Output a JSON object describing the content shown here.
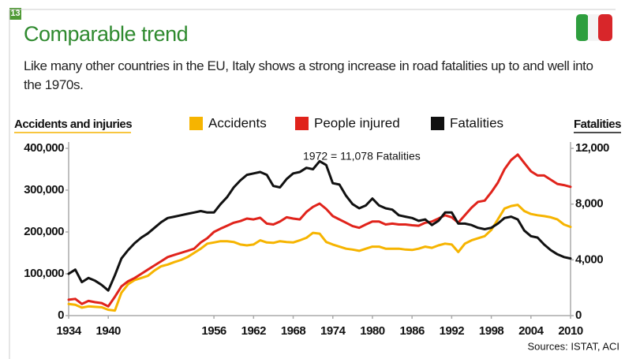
{
  "chart_data": {
    "type": "line",
    "badge": "13",
    "title": "Comparable trend",
    "subtitle": "Like many other countries in the EU, Italy shows a strong increase in road fatalities up to and well into the 1970s.",
    "y_label": "Accidents and injuries",
    "y2_label": "Fatalities",
    "annotation": "1972 = 11,078 Fatalities",
    "source": "Sources: ISTAT, ACI",
    "x": [
      1934,
      1935,
      1936,
      1937,
      1938,
      1939,
      1940,
      1941,
      1942,
      1943,
      1944,
      1945,
      1946,
      1947,
      1948,
      1949,
      1950,
      1951,
      1952,
      1953,
      1954,
      1955,
      1956,
      1957,
      1958,
      1959,
      1960,
      1961,
      1962,
      1963,
      1964,
      1965,
      1966,
      1967,
      1968,
      1969,
      1970,
      1971,
      1972,
      1973,
      1974,
      1975,
      1976,
      1977,
      1978,
      1979,
      1980,
      1981,
      1982,
      1983,
      1984,
      1985,
      1986,
      1987,
      1988,
      1989,
      1990,
      1991,
      1992,
      1993,
      1994,
      1995,
      1996,
      1997,
      1998,
      1999,
      2000,
      2001,
      2002,
      2003,
      2004,
      2005,
      2006,
      2007,
      2008,
      2009,
      2010
    ],
    "xlim": [
      1934,
      2010
    ],
    "xticks": [
      1934,
      1940,
      1956,
      1962,
      1968,
      1974,
      1980,
      1986,
      1992,
      1998,
      2004,
      2010
    ],
    "ylim": [
      0,
      400000
    ],
    "yticks": [
      0,
      {
        "value": 100000,
        "label": "100,000"
      },
      {
        "value": 200000,
        "label": "200,000"
      },
      {
        "value": 300000,
        "label": "300,000"
      },
      {
        "value": 400000,
        "label": "400,000"
      }
    ],
    "y2lim": [
      0,
      12000
    ],
    "y2ticks": [
      0,
      {
        "value": 4000,
        "label": "4,000"
      },
      {
        "value": 8000,
        "label": "8,000"
      },
      {
        "value": 12000,
        "label": "12,000"
      }
    ],
    "grid": false,
    "series": [
      {
        "name": "Accidents",
        "color": "#f6b400",
        "values": [
          28000,
          26000,
          19000,
          22000,
          21000,
          20000,
          14000,
          12000,
          55000,
          75000,
          85000,
          90000,
          95000,
          108000,
          118000,
          122000,
          128000,
          133000,
          140000,
          150000,
          160000,
          172000,
          175000,
          178000,
          178000,
          176000,
          170000,
          168000,
          170000,
          180000,
          175000,
          174000,
          178000,
          176000,
          175000,
          180000,
          186000,
          198000,
          196000,
          176000,
          170000,
          165000,
          160000,
          158000,
          155000,
          160000,
          165000,
          165000,
          160000,
          160000,
          160000,
          158000,
          157000,
          160000,
          165000,
          162000,
          168000,
          172000,
          170000,
          152000,
          172000,
          180000,
          185000,
          190000,
          205000,
          230000,
          256000,
          262000,
          265000,
          250000,
          243000,
          240000,
          238000,
          235000,
          230000,
          218000,
          212000
        ]
      },
      {
        "name": "People injured",
        "color": "#e0231b",
        "values": [
          38000,
          40000,
          28000,
          35000,
          32000,
          30000,
          22000,
          45000,
          70000,
          82000,
          90000,
          100000,
          110000,
          120000,
          130000,
          140000,
          145000,
          150000,
          155000,
          160000,
          175000,
          185000,
          200000,
          208000,
          215000,
          222000,
          226000,
          232000,
          230000,
          234000,
          220000,
          218000,
          225000,
          235000,
          232000,
          230000,
          248000,
          260000,
          268000,
          255000,
          238000,
          230000,
          222000,
          214000,
          210000,
          218000,
          225000,
          225000,
          218000,
          220000,
          218000,
          218000,
          216000,
          215000,
          222000,
          225000,
          232000,
          240000,
          235000,
          222000,
          240000,
          258000,
          272000,
          275000,
          295000,
          318000,
          350000,
          372000,
          385000,
          365000,
          345000,
          335000,
          335000,
          325000,
          315000,
          312000,
          308000
        ]
      },
      {
        "name": "Fatalities",
        "color": "#111111",
        "axis": "y2",
        "values": [
          3000,
          3300,
          2400,
          2700,
          2500,
          2200,
          1800,
          2900,
          4100,
          4700,
          5200,
          5600,
          5900,
          6300,
          6700,
          7000,
          7100,
          7200,
          7300,
          7400,
          7500,
          7400,
          7400,
          8000,
          8500,
          9200,
          9700,
          10100,
          10200,
          10300,
          10100,
          9300,
          9200,
          9800,
          10200,
          10300,
          10600,
          10500,
          11078,
          10800,
          9500,
          9400,
          8600,
          8000,
          7700,
          7900,
          8400,
          7900,
          7700,
          7600,
          7200,
          7100,
          7000,
          6800,
          6900,
          6500,
          6800,
          7400,
          7400,
          6600,
          6600,
          6500,
          6300,
          6200,
          6300,
          6600,
          7000,
          7100,
          6900,
          6100,
          5700,
          5600,
          5100,
          4700,
          4400,
          4200,
          4100
        ]
      }
    ]
  }
}
